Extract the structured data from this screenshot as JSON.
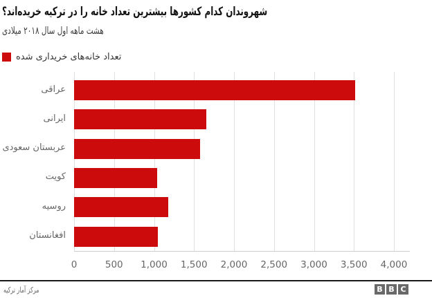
{
  "chart_data": {
    "type": "bar",
    "orientation": "horizontal",
    "title": "شهروندان کدام کشورها بیشترین تعداد خانه را در ترکیه خریده‌اند؟",
    "subtitle": "هشت ماهه اول سال ۲۰۱۸ میلادی",
    "legend": {
      "label": "تعداد خانه‌های خریداری شده",
      "color": "#cc0c0c"
    },
    "categories": [
      "عراقی",
      "ایرانی",
      "عربستان سعودی",
      "کویت",
      "روسیه",
      "افغانستان"
    ],
    "values": [
      3512,
      1655,
      1580,
      1035,
      1180,
      1045
    ],
    "bar_color": "#cc0c0c",
    "xlabel": "",
    "ylabel": "",
    "xlim": [
      0,
      4200
    ],
    "x_tick_values": [
      0,
      500,
      1000,
      1500,
      2000,
      2500,
      3000,
      3500,
      4000
    ],
    "x_tick_labels": [
      "0",
      "500",
      "1,000",
      "1,500",
      "2,000",
      "2,500",
      "3,000",
      "3,500",
      "4,000"
    ],
    "grid": "vertical"
  },
  "footer": {
    "source": "مرکز آمار ترکیه",
    "logo_letters": [
      "B",
      "B",
      "C"
    ]
  }
}
